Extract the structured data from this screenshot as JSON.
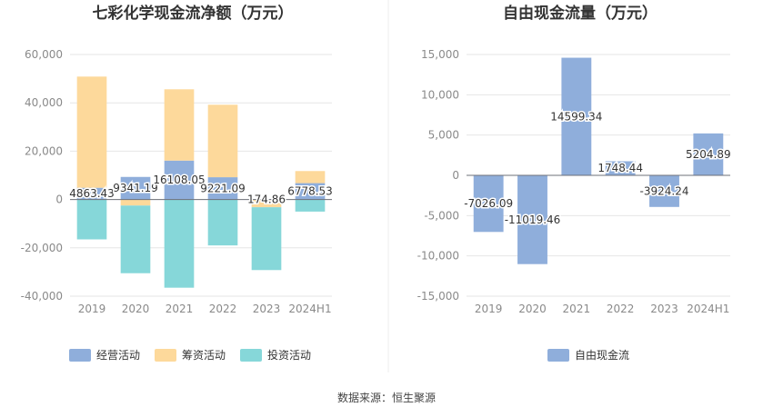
{
  "source_text": "数据来源：恒生聚源",
  "colors": {
    "operating": "#8faedb",
    "financing": "#fdd99b",
    "investing": "#86d7d9",
    "fcf": "#8faedb",
    "grid": "#e6e6e6",
    "axis_text": "#8a8a8a",
    "title": "#333333"
  },
  "chart_data": [
    {
      "type": "bar",
      "stacked": true,
      "title": "七彩化学现金流净额（万元）",
      "categories": [
        "2019",
        "2020",
        "2021",
        "2022",
        "2023",
        "2024H1"
      ],
      "ylim": [
        -40000,
        60000
      ],
      "yticks": [
        60000,
        40000,
        20000,
        0,
        -20000,
        -40000
      ],
      "ytick_labels": [
        "60,000",
        "40,000",
        "20,000",
        "0",
        "-20,000",
        "-40,000"
      ],
      "grid": true,
      "legend_position": "bottom",
      "series": [
        {
          "name": "经营活动",
          "values": [
            4863.43,
            9341.19,
            16108.05,
            9221.09,
            174.86,
            6778.53
          ]
        },
        {
          "name": "筹资活动",
          "values": [
            46000,
            -2500,
            29500,
            30000,
            -3200,
            5000
          ]
        },
        {
          "name": "投资活动",
          "values": [
            -16500,
            -28000,
            -36500,
            -19000,
            -26000,
            -5000
          ]
        }
      ],
      "data_labels": [
        "4863.43",
        "9341.19",
        "16108.05",
        "9221.09",
        "174.86",
        "6778.53"
      ]
    },
    {
      "type": "bar",
      "title": "自由现金流量（万元）",
      "categories": [
        "2019",
        "2020",
        "2021",
        "2022",
        "2023",
        "2024H1"
      ],
      "ylim": [
        -15000,
        15000
      ],
      "yticks": [
        15000,
        10000,
        5000,
        0,
        -5000,
        -10000,
        -15000
      ],
      "ytick_labels": [
        "15,000",
        "10,000",
        "5,000",
        "0",
        "-5,000",
        "-10,000",
        "-15,000"
      ],
      "grid": true,
      "legend_position": "bottom",
      "series": [
        {
          "name": "自由现金流",
          "values": [
            -7026.09,
            -11019.46,
            14599.34,
            1748.44,
            -3924.24,
            5204.89
          ]
        }
      ],
      "data_labels": [
        "-7026.09",
        "-11019.46",
        "14599.34",
        "1748.44",
        "-3924.24",
        "5204.89"
      ]
    }
  ]
}
